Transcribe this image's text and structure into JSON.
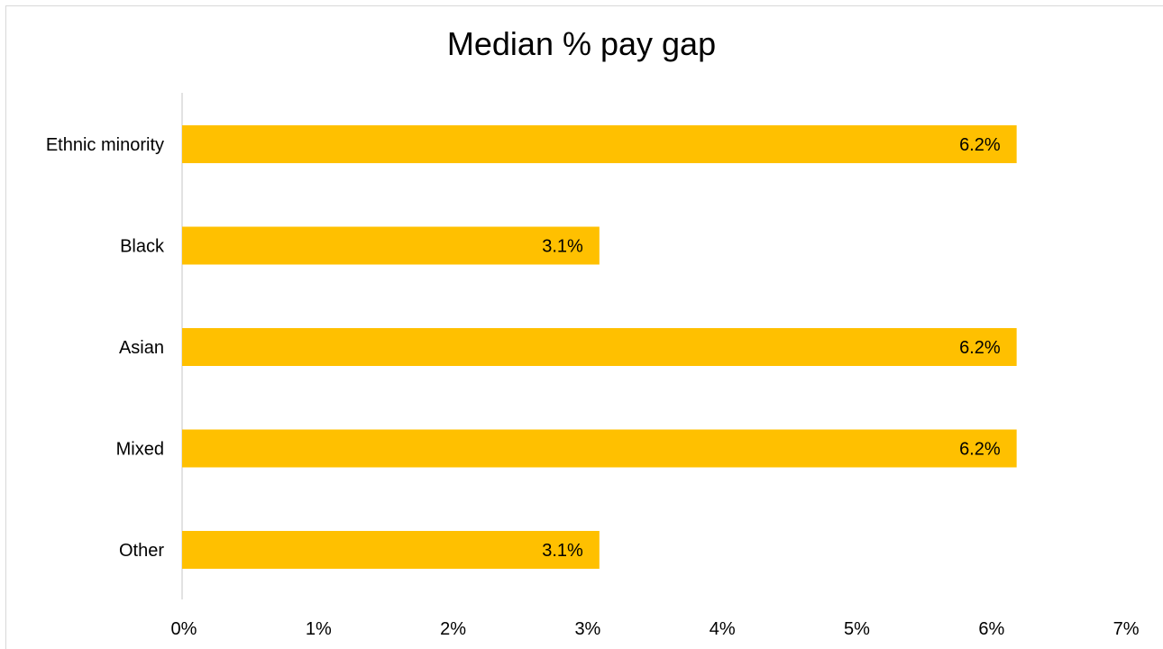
{
  "chart_data": {
    "type": "bar",
    "orientation": "horizontal",
    "title": "Median % pay gap",
    "categories": [
      "Ethnic minority",
      "Black",
      "Asian",
      "Mixed",
      "Other"
    ],
    "values": [
      6.2,
      3.1,
      6.2,
      6.2,
      3.1
    ],
    "data_labels": [
      "6.2%",
      "3.1%",
      "6.2%",
      "6.2%",
      "3.1%"
    ],
    "x_ticks": [
      "0%",
      "1%",
      "2%",
      "3%",
      "4%",
      "5%",
      "6%",
      "7%"
    ],
    "xlim": [
      0,
      7
    ],
    "xlabel": "",
    "ylabel": "",
    "grid": false,
    "legend": "none",
    "bar_color": "#FFC000"
  }
}
